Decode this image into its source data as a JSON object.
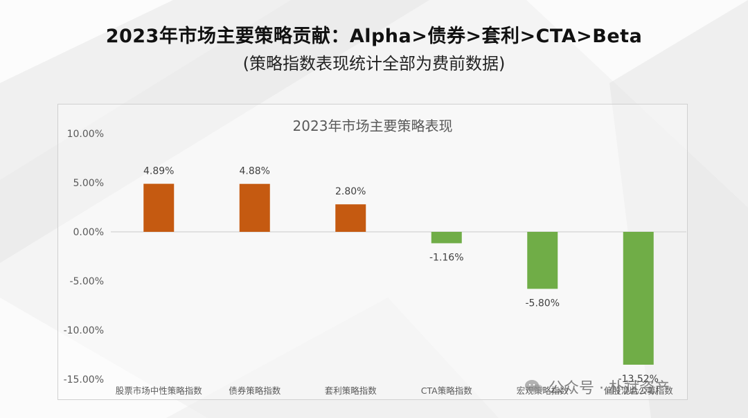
{
  "slide": {
    "title": "2023年市场主要策略贡献：Alpha>债券>套利>CTA>Beta",
    "subtitle": "(策略指数表现统计全部为费前数据)"
  },
  "watermark": {
    "text": "公众号 · 朴斌资产"
  },
  "colors": {
    "positive": "#c55a11",
    "negative": "#70ad47",
    "axis_text": "#595959",
    "zero_line": "#d9d9d9"
  },
  "chart_data": {
    "type": "bar",
    "title": "2023年市场主要策略表现",
    "categories": [
      "股票市场中性策略指数",
      "债券策略指数",
      "套利策略指数",
      "CTA策略指数",
      "宏观策略指数",
      "偏股混合公募指数"
    ],
    "values": [
      4.89,
      4.88,
      2.8,
      -1.16,
      -5.8,
      -13.52
    ],
    "data_labels": [
      "4.89%",
      "4.88%",
      "2.80%",
      "-1.16%",
      "-5.80%",
      "-13.52%"
    ],
    "yticks": [
      10,
      5,
      0,
      -5,
      -10,
      -15
    ],
    "ytick_labels": [
      "10.00%",
      "5.00%",
      "0.00%",
      "-5.00%",
      "-10.00%",
      "-15.00%"
    ],
    "ylim": [
      -15,
      10
    ],
    "xlabel": "",
    "ylabel": "",
    "grid": false,
    "legend": "none"
  }
}
